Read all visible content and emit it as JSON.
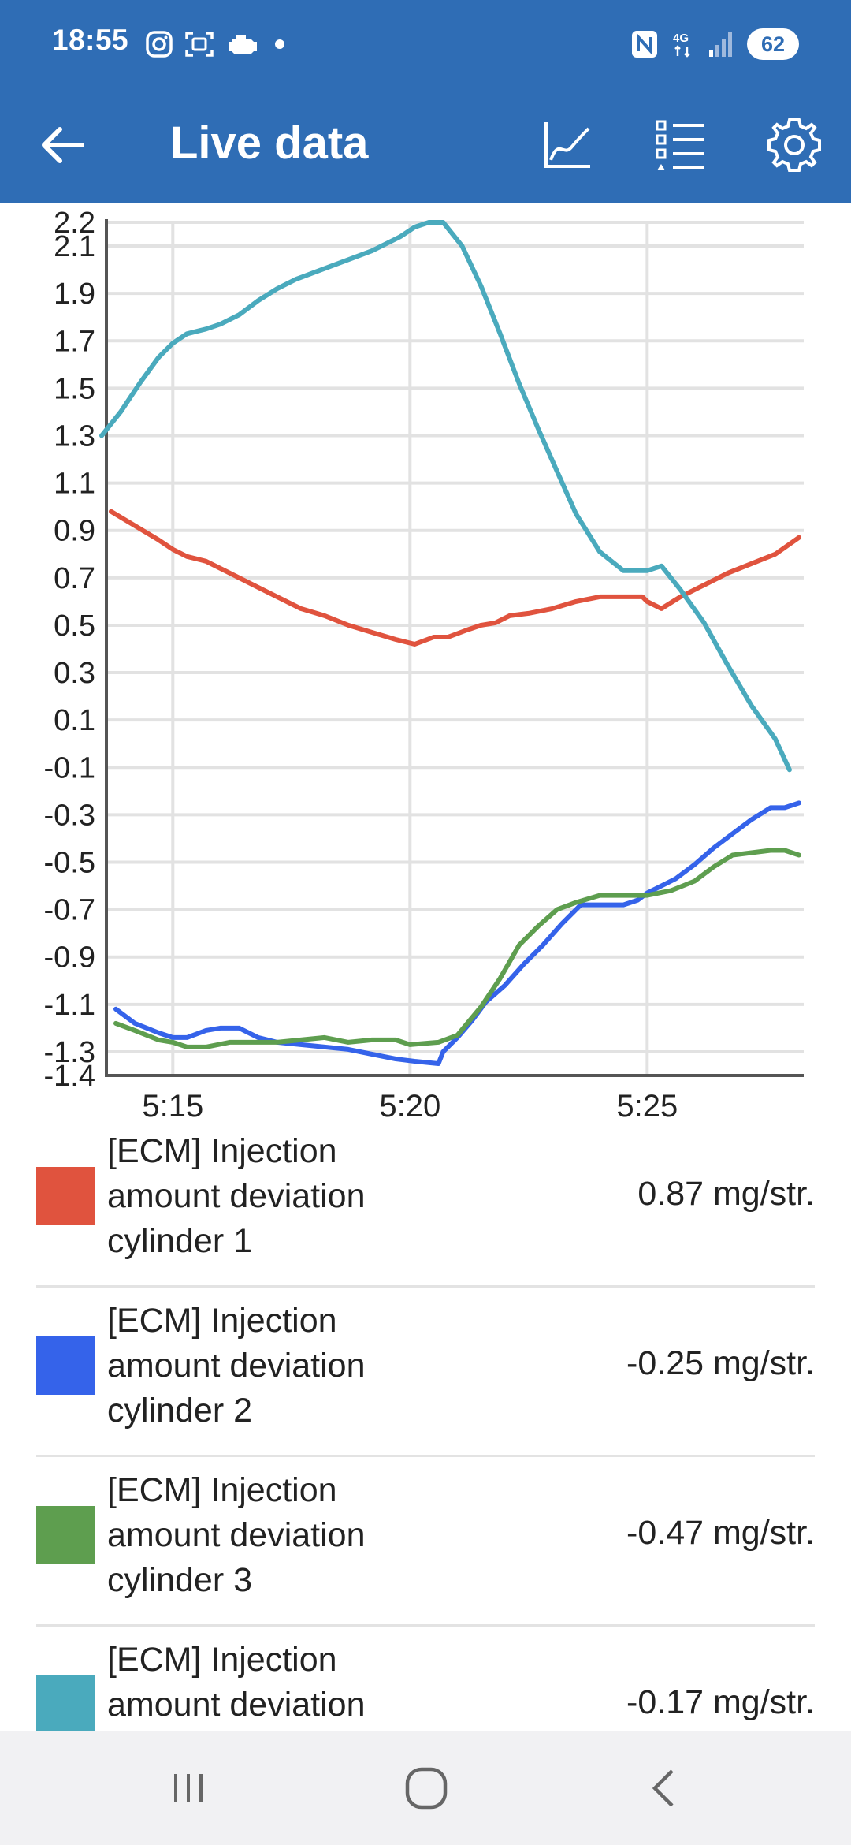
{
  "status_bar": {
    "time": "18:55",
    "battery": "62",
    "left_icons": [
      "instagram-icon",
      "scan-icon",
      "engine-icon",
      "dot-icon"
    ],
    "right_icons": [
      "nfc-icon",
      "4g-icon",
      "signal-icon"
    ]
  },
  "app_bar": {
    "title": "Live data",
    "back_icon": "arrow-back-icon",
    "actions": [
      "chart-icon",
      "list-icon",
      "settings-icon"
    ],
    "background": "#2f6db5"
  },
  "chart_data": {
    "type": "line",
    "title": "",
    "xlabel": "",
    "ylabel": "",
    "ylim": [
      -1.4,
      2.2
    ],
    "yticks": [
      "2.2",
      "2.1",
      "1.9",
      "1.7",
      "1.5",
      "1.3",
      "1.1",
      "0.9",
      "0.7",
      "0.5",
      "0.3",
      "0.1",
      "-0.1",
      "-0.3",
      "-0.5",
      "-0.7",
      "-0.9",
      "-1.1",
      "-1.3",
      "-1.4"
    ],
    "xticks": [
      "5:15",
      "5:20",
      "5:25"
    ],
    "grid": true,
    "series": [
      {
        "color": "#e0533e",
        "x": [
          13.7,
          14.2,
          14.7,
          15.0,
          15.3,
          15.7,
          16.2,
          16.7,
          17.2,
          17.7,
          18.2,
          18.7,
          19.2,
          19.7,
          20.1,
          20.5,
          20.8,
          21.2,
          21.5,
          21.8,
          22.1,
          22.5,
          23.0,
          23.5,
          24.0,
          24.5,
          24.9,
          25.0,
          25.3,
          25.7,
          26.2,
          26.7,
          27.2,
          27.7,
          28.2
        ],
        "y": [
          0.98,
          0.92,
          0.86,
          0.82,
          0.79,
          0.77,
          0.72,
          0.67,
          0.62,
          0.57,
          0.54,
          0.5,
          0.47,
          0.44,
          0.42,
          0.45,
          0.45,
          0.48,
          0.5,
          0.51,
          0.54,
          0.55,
          0.57,
          0.6,
          0.62,
          0.62,
          0.62,
          0.6,
          0.57,
          0.62,
          0.67,
          0.72,
          0.76,
          0.8,
          0.87
        ]
      },
      {
        "color": "#3563ea",
        "x": [
          13.8,
          14.2,
          14.7,
          15.0,
          15.3,
          15.7,
          16.0,
          16.4,
          16.8,
          17.2,
          17.7,
          18.2,
          18.7,
          19.2,
          19.7,
          20.1,
          20.6,
          20.7,
          21.0,
          21.3,
          21.6,
          22.0,
          22.4,
          22.8,
          23.2,
          23.6,
          24.0,
          24.5,
          24.8,
          25.0,
          25.2,
          25.6,
          26.0,
          26.4,
          26.8,
          27.2,
          27.6,
          27.9,
          28.2
        ],
        "y": [
          -1.12,
          -1.18,
          -1.22,
          -1.24,
          -1.24,
          -1.21,
          -1.2,
          -1.2,
          -1.24,
          -1.26,
          -1.27,
          -1.28,
          -1.29,
          -1.31,
          -1.33,
          -1.34,
          -1.35,
          -1.3,
          -1.24,
          -1.17,
          -1.09,
          -1.02,
          -0.93,
          -0.85,
          -0.76,
          -0.68,
          -0.68,
          -0.68,
          -0.66,
          -0.63,
          -0.61,
          -0.57,
          -0.51,
          -0.44,
          -0.38,
          -0.32,
          -0.27,
          -0.27,
          -0.25
        ]
      },
      {
        "color": "#5e9e4f",
        "x": [
          13.8,
          14.2,
          14.7,
          15.0,
          15.3,
          15.7,
          16.2,
          16.7,
          17.2,
          17.7,
          18.2,
          18.7,
          19.2,
          19.7,
          20.0,
          20.6,
          21.0,
          21.5,
          21.9,
          22.3,
          22.7,
          23.1,
          23.5,
          24.0,
          24.5,
          25.0,
          25.5,
          26.0,
          26.4,
          26.8,
          27.2,
          27.6,
          27.9,
          28.2
        ],
        "y": [
          -1.18,
          -1.21,
          -1.25,
          -1.26,
          -1.28,
          -1.28,
          -1.26,
          -1.26,
          -1.26,
          -1.25,
          -1.24,
          -1.26,
          -1.25,
          -1.25,
          -1.27,
          -1.26,
          -1.23,
          -1.11,
          -0.99,
          -0.85,
          -0.77,
          -0.7,
          -0.67,
          -0.64,
          -0.64,
          -0.64,
          -0.62,
          -0.58,
          -0.52,
          -0.47,
          -0.46,
          -0.45,
          -0.45,
          -0.47
        ]
      },
      {
        "color": "#4aaabd",
        "x": [
          13.5,
          13.9,
          14.3,
          14.7,
          15.0,
          15.3,
          15.7,
          16.0,
          16.4,
          16.8,
          17.2,
          17.6,
          18.0,
          18.4,
          18.8,
          19.2,
          19.5,
          19.8,
          20.1,
          20.4,
          20.7,
          21.1,
          21.5,
          21.9,
          22.3,
          22.7,
          23.1,
          23.5,
          24.0,
          24.5,
          24.8,
          25.0,
          25.3,
          25.7,
          26.2,
          26.7,
          27.2,
          27.7,
          28.0
        ],
        "y": [
          1.3,
          1.4,
          1.52,
          1.63,
          1.69,
          1.73,
          1.75,
          1.77,
          1.81,
          1.87,
          1.92,
          1.96,
          1.99,
          2.02,
          2.05,
          2.08,
          2.11,
          2.14,
          2.18,
          2.21,
          2.21,
          2.1,
          1.93,
          1.73,
          1.52,
          1.33,
          1.15,
          0.97,
          0.81,
          0.73,
          0.73,
          0.73,
          0.75,
          0.65,
          0.51,
          0.33,
          0.16,
          0.02,
          -0.11
        ]
      }
    ]
  },
  "legend": [
    {
      "color": "#e0533e",
      "name": "[ECM] Injection amount deviation cylinder 1",
      "value": "0.87 mg/str."
    },
    {
      "color": "#3563ea",
      "name": "[ECM] Injection amount deviation cylinder 2",
      "value": "-0.25 mg/str."
    },
    {
      "color": "#5e9e4f",
      "name": "[ECM] Injection amount deviation cylinder 3",
      "value": "-0.47 mg/str."
    },
    {
      "color": "#4aaabd",
      "name": "[ECM] Injection amount deviation",
      "value": "-0.17 mg/str."
    }
  ],
  "nav_bar": {
    "icons": [
      "recents-icon",
      "home-icon",
      "back-nav-icon"
    ]
  }
}
